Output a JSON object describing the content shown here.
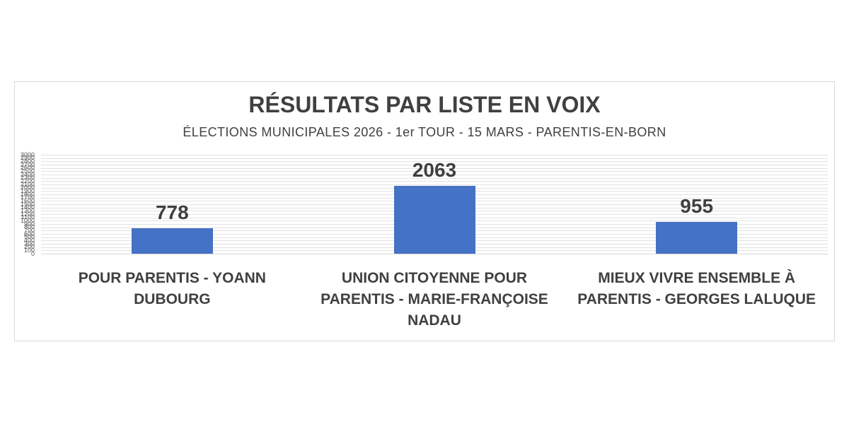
{
  "chart_data": {
    "type": "bar",
    "title": "RÉSULTATS PAR LISTE EN VOIX",
    "subtitle": "ÉLECTIONS MUNICIPALES 2026 - 1er TOUR - 15 MARS - PARENTIS-EN-BORN",
    "categories": [
      "POUR PARENTIS - YOANN DUBOURG",
      "UNION CITOYENNE POUR PARENTIS - MARIE-FRANÇOISE NADAU",
      "MIEUX VIVRE ENSEMBLE À PARENTIS - GEORGES LALUQUE"
    ],
    "category_wrap_lines": [
      [
        "POUR PARENTIS - YOANN",
        "DUBOURG"
      ],
      [
        "UNION CITOYENNE POUR",
        "PARENTIS - MARIE-FRANÇOISE",
        "NADAU"
      ],
      [
        "MIEUX VIVRE ENSEMBLE À",
        "PARENTIS - GEORGES LALUQUE"
      ]
    ],
    "values": [
      778,
      2063,
      955
    ],
    "data_labels": [
      "778",
      "2063",
      "955"
    ],
    "xlabel": "",
    "ylabel": "",
    "ylim": [
      0,
      3000
    ],
    "ytick_step": 100,
    "ytick_labels": [
      "0",
      "100",
      "200",
      "300",
      "400",
      "500",
      "600",
      "700",
      "800",
      "900",
      "1000",
      "1100",
      "1200",
      "1300",
      "1400",
      "1500",
      "1600",
      "1700",
      "1800",
      "1900",
      "2000",
      "2100",
      "2200",
      "2300",
      "2400",
      "2500",
      "2600",
      "2700",
      "2800",
      "2900",
      "3000"
    ],
    "grid": true,
    "legend": "none",
    "bar_color": "#4472C4",
    "colors": {
      "bar": "#4472C4",
      "title_text": "#404040",
      "subtitle_text": "#404040",
      "value_label_text": "#3f3f3f",
      "category_text": "#404040",
      "axis_tick_text": "#595959",
      "gridline": "#e2e2e2",
      "chart_border": "#d9d9d9",
      "background": "#ffffff"
    }
  }
}
